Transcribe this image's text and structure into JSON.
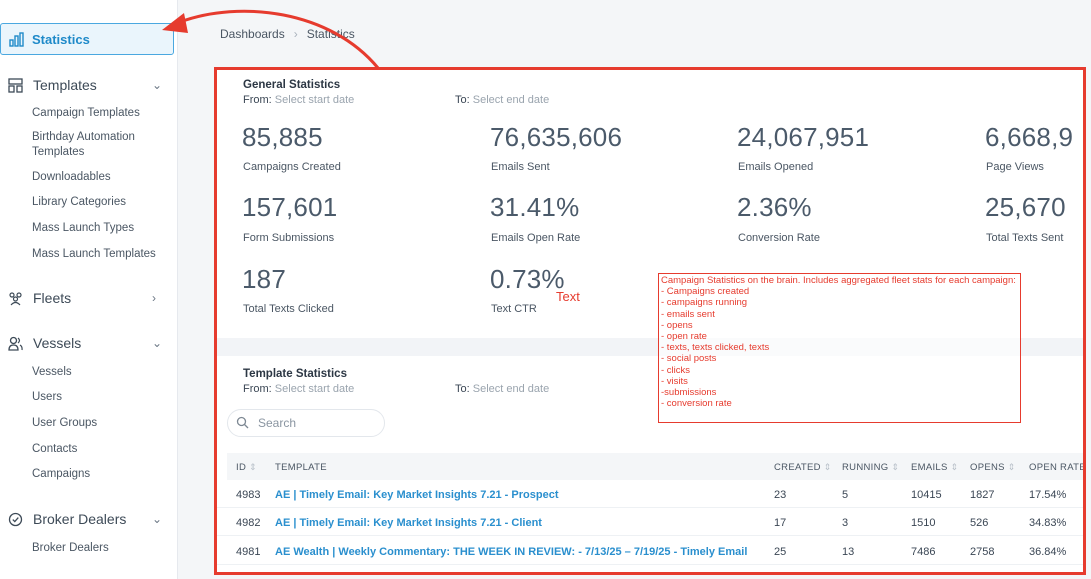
{
  "sidebar": {
    "active": {
      "label": "Statistics",
      "icon": "bar-chart-icon"
    },
    "templates": {
      "label": "Templates",
      "icon": "layout-icon",
      "items": [
        "Campaign Templates",
        "Birthday Automation Templates",
        "Downloadables",
        "Library Categories",
        "Mass Launch Types",
        "Mass Launch Templates"
      ]
    },
    "fleets": {
      "label": "Fleets",
      "icon": "people-group-icon"
    },
    "vessels": {
      "label": "Vessels",
      "icon": "users-icon",
      "items": [
        "Vessels",
        "Users",
        "User Groups",
        "Contacts",
        "Campaigns"
      ]
    },
    "broker": {
      "label": "Broker Dealers",
      "icon": "check-circle-icon",
      "items": [
        "Broker Dealers"
      ]
    }
  },
  "breadcrumb": {
    "root": "Dashboards",
    "current": "Statistics"
  },
  "general": {
    "title": "General Statistics",
    "from_label": "From:",
    "from_placeholder": "Select start date",
    "to_label": "To:",
    "to_placeholder": "Select end date",
    "stats": [
      {
        "value": "85,885",
        "label": "Campaigns Created"
      },
      {
        "value": "76,635,606",
        "label": "Emails Sent"
      },
      {
        "value": "24,067,951",
        "label": "Emails Opened"
      },
      {
        "value": "6,668,9",
        "label": "Page Views"
      },
      {
        "value": "157,601",
        "label": "Form Submissions"
      },
      {
        "value": "31.41%",
        "label": "Emails Open Rate"
      },
      {
        "value": "2.36%",
        "label": "Conversion Rate"
      },
      {
        "value": "25,670",
        "label": "Total Texts Sent"
      },
      {
        "value": "187",
        "label": "Total Texts Clicked"
      },
      {
        "value": "0.73%",
        "label": "Text CTR"
      }
    ]
  },
  "template_stats": {
    "title": "Template Statistics",
    "from_label": "From:",
    "from_placeholder": "Select start date",
    "to_label": "To:",
    "to_placeholder": "Select end date",
    "search_placeholder": "Search",
    "columns": [
      "ID",
      "TEMPLATE",
      "CREATED",
      "RUNNING",
      "EMAILS",
      "OPENS",
      "OPEN RATE"
    ],
    "rows": [
      {
        "id": "4983",
        "template": "AE | Timely Email: Key Market Insights 7.21 - Prospect",
        "created": "23",
        "running": "5",
        "emails": "10415",
        "opens": "1827",
        "open_rate": "17.54%"
      },
      {
        "id": "4982",
        "template": "AE | Timely Email: Key Market Insights 7.21 - Client",
        "created": "17",
        "running": "3",
        "emails": "1510",
        "opens": "526",
        "open_rate": "34.83%"
      },
      {
        "id": "4981",
        "template": "AE Wealth | Weekly Commentary: THE WEEK IN REVIEW: - 7/13/25 – 7/19/25 - Timely Email",
        "created": "25",
        "running": "13",
        "emails": "7486",
        "opens": "2758",
        "open_rate": "36.84%"
      }
    ]
  },
  "annotation": {
    "text_tag": "Text",
    "lines": [
      "Campaign Statistics on the brain. Includes aggregated fleet stats for each campaign:",
      "- Campaigns created",
      "- campaigns running",
      "- emails sent",
      "- opens",
      "- open rate",
      "- texts, texts clicked, texts",
      "- social posts",
      "- clicks",
      "- visits",
      "-submissions",
      "- conversion rate"
    ]
  },
  "colors": {
    "accent": "#1f8ac9",
    "link": "#2a8fce",
    "annotation_red": "#e63b2e"
  }
}
